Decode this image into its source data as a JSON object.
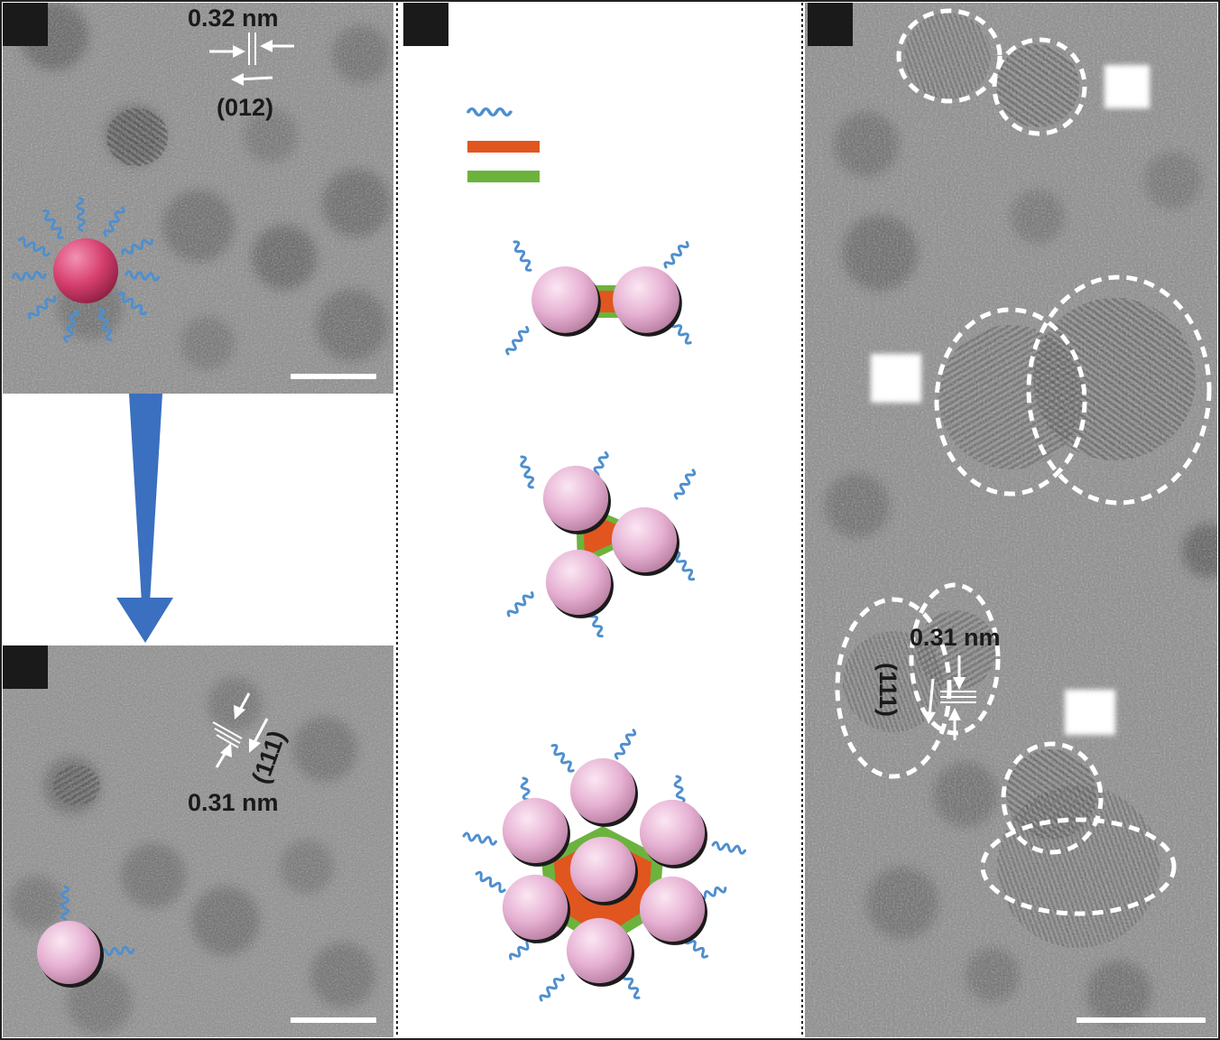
{
  "figure": {
    "panel_a": {
      "spacing_label": "0.32 nm",
      "plane_label": "(012)"
    },
    "panel_b": {
      "spacing_label": "0.31 nm",
      "plane_label": "(111)"
    },
    "panel_d": {
      "spacing_label": "0.31 nm",
      "plane_label": "(111)"
    }
  },
  "colors": {
    "ligand": "#4f8fce",
    "orange_bar": "#e0561e",
    "green_bar": "#6cb33e",
    "sphere_pink": "#e8b4d6",
    "sphere_red": "#d94b77",
    "arrow_blue": "#3b6fbf",
    "label_box": "#1a1a1a"
  }
}
